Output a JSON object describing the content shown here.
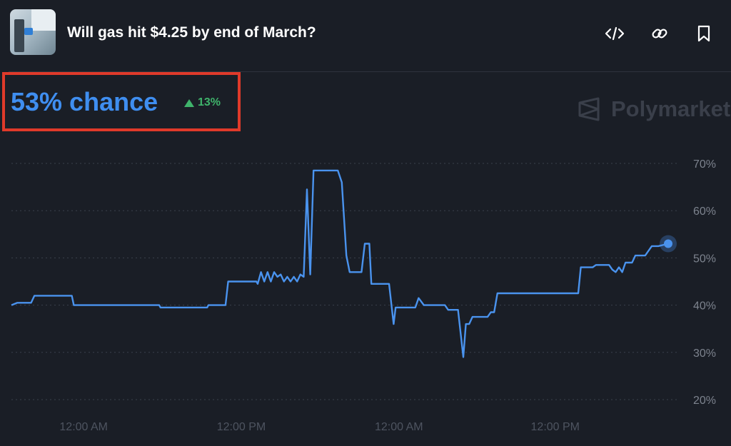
{
  "header": {
    "title": "Will gas hit $4.25 by end of March?",
    "icons": [
      "embed-code-icon",
      "link-icon",
      "bookmark-icon"
    ]
  },
  "summary": {
    "chance_text": "53% chance",
    "delta_text": "13%",
    "delta_direction": "up"
  },
  "brand": {
    "name": "Polymarket"
  },
  "colors": {
    "line": "#4a93ee",
    "chance": "#3f8ef0",
    "delta": "#3fb36b",
    "highlight_border": "#e03a2a",
    "background": "#1a1e26"
  },
  "chart_data": {
    "type": "line",
    "title": "",
    "xlabel": "",
    "ylabel": "",
    "x_tick_labels": [
      "12:00 AM",
      "12:00 PM",
      "12:00 AM",
      "12:00 PM"
    ],
    "y_ticks": [
      20,
      30,
      40,
      50,
      60,
      70
    ],
    "y_tick_labels": [
      "20%",
      "30%",
      "40%",
      "50%",
      "60%",
      "70%"
    ],
    "ylim": [
      20,
      70
    ],
    "xlim": [
      0,
      1
    ],
    "grid": true,
    "series": [
      {
        "values": [
          [
            0.0,
            40
          ],
          [
            0.009,
            40.5
          ],
          [
            0.03,
            40.5
          ],
          [
            0.035,
            42
          ],
          [
            0.092,
            42
          ],
          [
            0.095,
            40
          ],
          [
            0.225,
            40
          ],
          [
            0.227,
            39.5
          ],
          [
            0.298,
            39.5
          ],
          [
            0.3,
            40
          ],
          [
            0.326,
            40
          ],
          [
            0.33,
            45
          ],
          [
            0.373,
            45
          ],
          [
            0.375,
            44.5
          ],
          [
            0.38,
            47
          ],
          [
            0.385,
            45
          ],
          [
            0.39,
            47
          ],
          [
            0.395,
            45
          ],
          [
            0.4,
            47
          ],
          [
            0.405,
            46
          ],
          [
            0.41,
            46.5
          ],
          [
            0.415,
            45
          ],
          [
            0.42,
            46
          ],
          [
            0.425,
            45
          ],
          [
            0.43,
            46
          ],
          [
            0.435,
            45
          ],
          [
            0.44,
            46.5
          ],
          [
            0.445,
            46
          ],
          [
            0.45,
            64.5
          ],
          [
            0.455,
            46.5
          ],
          [
            0.46,
            68.5
          ],
          [
            0.497,
            68.5
          ],
          [
            0.503,
            66
          ],
          [
            0.51,
            50.5
          ],
          [
            0.515,
            47
          ],
          [
            0.533,
            47
          ],
          [
            0.538,
            53
          ],
          [
            0.545,
            53
          ],
          [
            0.548,
            44.5
          ],
          [
            0.575,
            44.5
          ],
          [
            0.582,
            36
          ],
          [
            0.585,
            39.5
          ],
          [
            0.615,
            39.5
          ],
          [
            0.62,
            41.5
          ],
          [
            0.628,
            40
          ],
          [
            0.66,
            40
          ],
          [
            0.665,
            39
          ],
          [
            0.68,
            39
          ],
          [
            0.688,
            29
          ],
          [
            0.692,
            36
          ],
          [
            0.697,
            36
          ],
          [
            0.702,
            37.5
          ],
          [
            0.725,
            37.5
          ],
          [
            0.73,
            38.5
          ],
          [
            0.735,
            38.5
          ],
          [
            0.74,
            42.5
          ],
          [
            0.863,
            42.5
          ],
          [
            0.867,
            48
          ],
          [
            0.885,
            48
          ],
          [
            0.89,
            48.5
          ],
          [
            0.91,
            48.5
          ],
          [
            0.915,
            47.5
          ],
          [
            0.92,
            47
          ],
          [
            0.925,
            48
          ],
          [
            0.93,
            47
          ],
          [
            0.935,
            49
          ],
          [
            0.945,
            49
          ],
          [
            0.95,
            50.5
          ],
          [
            0.965,
            50.5
          ],
          [
            0.97,
            51.5
          ],
          [
            0.975,
            52.5
          ],
          [
            0.985,
            52.5
          ],
          [
            1.0,
            53
          ]
        ]
      }
    ]
  }
}
